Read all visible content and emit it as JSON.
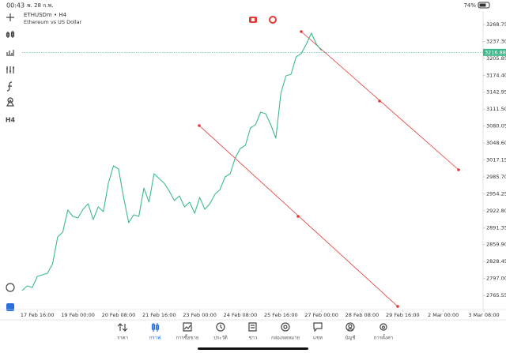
{
  "status_bar": {
    "time": "00:43",
    "date": "พ. 28 ก.พ.",
    "battery": "74%"
  },
  "toolbar": {
    "timeframe": "H4"
  },
  "chart_data": {
    "type": "line",
    "title": "ETHUSDm • H4",
    "subtitle": "Ethereum vs US Dollar",
    "x": [
      0,
      1,
      2,
      3,
      4,
      5,
      6,
      7,
      8,
      9,
      10,
      11,
      12,
      13,
      14,
      15,
      16,
      17,
      18,
      19,
      20,
      21,
      22,
      23,
      24,
      25,
      26,
      27,
      28,
      29,
      30,
      31,
      32,
      33,
      34,
      35,
      36,
      37,
      38,
      39,
      40,
      41,
      42,
      43,
      44,
      45,
      46,
      47,
      48,
      49,
      50,
      51,
      52,
      53,
      54,
      55,
      56,
      57,
      58,
      59
    ],
    "series": [
      {
        "name": "ETHUSDm",
        "color": "#3dba8c",
        "values": [
          2774.4,
          2783.2,
          2780.3,
          2800.8,
          2803.7,
          2806.7,
          2824.3,
          2874.2,
          2883.0,
          2924.0,
          2912.3,
          2909.4,
          2925.5,
          2935.8,
          2906.4,
          2929.9,
          2921.1,
          2973.9,
          3006.2,
          3000.3,
          2947.5,
          2900.6,
          2915.2,
          2912.3,
          2965.1,
          2938.7,
          2991.5,
          2982.7,
          2973.9,
          2959.2,
          2941.6,
          2950.4,
          2929.9,
          2938.7,
          2918.2,
          2947.5,
          2925.5,
          2935.8,
          2953.4,
          2962.2,
          2985.6,
          2991.5,
          3020.9,
          3038.4,
          3044.3,
          3076.6,
          3082.5,
          3105.9,
          3103.0,
          3082.5,
          3057.5,
          3141.1,
          3173.4,
          3176.3,
          3208.6,
          3214.5,
          3232.1,
          3252.6,
          3232.1,
          3220.3
        ]
      }
    ],
    "last_price": 3216.88,
    "xlim": [
      0,
      91
    ],
    "xticks": [
      {
        "value": 3,
        "label": "17 Feb 16:00"
      },
      {
        "value": 11,
        "label": "19 Feb 00:00"
      },
      {
        "value": 19,
        "label": "20 Feb 08:00"
      },
      {
        "value": 27,
        "label": "21 Feb 16:00"
      },
      {
        "value": 35,
        "label": "23 Feb 00:00"
      },
      {
        "value": 43,
        "label": "24 Feb 08:00"
      },
      {
        "value": 51,
        "label": "25 Feb 16:00"
      },
      {
        "value": 59,
        "label": "27 Feb 00:00"
      },
      {
        "value": 67,
        "label": "28 Feb 08:00"
      },
      {
        "value": 75,
        "label": "29 Feb 16:00"
      },
      {
        "value": 83,
        "label": "2 Mar 00:00"
      },
      {
        "value": 91,
        "label": "3 Mar 08:00"
      }
    ],
    "ylim": [
      2739.2,
      3287.8
    ],
    "yticks": [
      3268.75,
      {
        "value": 3237.3,
        "label": "3237.30"
      },
      3205.85,
      {
        "value": 3174.4,
        "label": "3174.40"
      },
      3142.95,
      {
        "value": 3111.5,
        "label": "3111.50"
      },
      3080.05,
      {
        "value": 3048.6,
        "label": "3048.60"
      },
      3017.15,
      {
        "value": 2985.7,
        "label": "2985.70"
      },
      2954.25,
      {
        "value": 2922.8,
        "label": "2922.80"
      },
      2891.35,
      {
        "value": 2859.9,
        "label": "2859.90"
      },
      2828.45,
      {
        "value": 2797,
        "label": "2797.00"
      },
      2765.55
    ]
  },
  "tabs": [
    "ราคา",
    "กราฟ",
    "การซื้อขาย",
    "ประวัติ",
    "ข่าว",
    "กล่องจดหมาย",
    "แชท",
    "บัญชี",
    "การตั้งค่า"
  ]
}
